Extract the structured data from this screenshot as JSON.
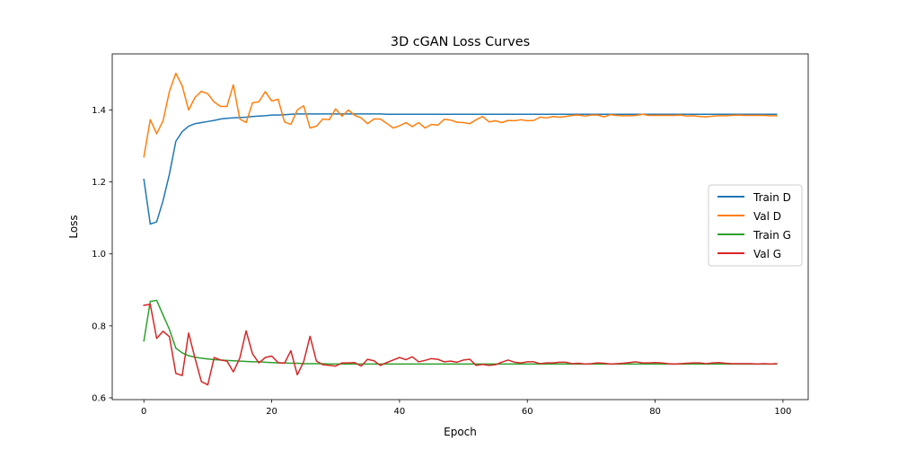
{
  "chart_data": {
    "type": "line",
    "title": "3D cGAN Loss Curves",
    "xlabel": "Epoch",
    "ylabel": "Loss",
    "xlim": [
      -4.95,
      103.95
    ],
    "ylim": [
      0.595,
      1.556
    ],
    "xticks": [
      {
        "value": 0,
        "label": "0"
      },
      {
        "value": 20,
        "label": "20"
      },
      {
        "value": 40,
        "label": "40"
      },
      {
        "value": 60,
        "label": "60"
      },
      {
        "value": 80,
        "label": "80"
      },
      {
        "value": 100,
        "label": "100"
      }
    ],
    "yticks": [
      {
        "value": 0.6,
        "label": "0.6"
      },
      {
        "value": 0.8,
        "label": "0.8"
      },
      {
        "value": 1.0,
        "label": "1.0"
      },
      {
        "value": 1.2,
        "label": "1.2"
      },
      {
        "value": 1.4,
        "label": "1.4"
      }
    ],
    "grid": false,
    "legend_position": "center-right",
    "series": [
      {
        "name": "Train D",
        "color": "#1f77b4",
        "values": [
          1.207,
          1.083,
          1.089,
          1.148,
          1.222,
          1.313,
          1.34,
          1.355,
          1.362,
          1.365,
          1.368,
          1.371,
          1.375,
          1.377,
          1.378,
          1.379,
          1.38,
          1.382,
          1.383,
          1.384,
          1.386,
          1.386,
          1.387,
          1.388,
          1.389,
          1.389,
          1.389,
          1.389,
          1.389,
          1.389,
          1.389,
          1.389,
          1.389,
          1.389,
          1.389,
          1.389,
          1.389,
          1.389,
          1.388,
          1.388,
          1.388,
          1.388,
          1.388,
          1.388,
          1.388,
          1.388,
          1.388,
          1.388,
          1.388,
          1.388,
          1.388,
          1.388,
          1.388,
          1.388,
          1.388,
          1.388,
          1.388,
          1.388,
          1.388,
          1.388,
          1.388,
          1.388,
          1.388,
          1.388,
          1.388,
          1.388,
          1.388,
          1.388,
          1.388,
          1.388,
          1.388,
          1.388,
          1.388,
          1.388,
          1.388,
          1.388,
          1.388,
          1.388,
          1.388,
          1.388,
          1.388,
          1.388,
          1.388,
          1.388,
          1.388,
          1.388,
          1.388,
          1.388,
          1.388,
          1.388,
          1.388,
          1.388,
          1.388,
          1.388,
          1.388,
          1.388,
          1.388,
          1.388,
          1.388,
          1.388
        ]
      },
      {
        "name": "Val D",
        "color": "#ff7f0e",
        "values": [
          1.27,
          1.373,
          1.334,
          1.37,
          1.452,
          1.502,
          1.467,
          1.4,
          1.435,
          1.452,
          1.445,
          1.422,
          1.41,
          1.41,
          1.47,
          1.375,
          1.365,
          1.42,
          1.423,
          1.451,
          1.425,
          1.43,
          1.367,
          1.36,
          1.4,
          1.412,
          1.35,
          1.355,
          1.375,
          1.373,
          1.403,
          1.383,
          1.4,
          1.385,
          1.378,
          1.362,
          1.375,
          1.375,
          1.363,
          1.35,
          1.356,
          1.365,
          1.354,
          1.365,
          1.35,
          1.36,
          1.358,
          1.374,
          1.372,
          1.366,
          1.365,
          1.362,
          1.373,
          1.382,
          1.367,
          1.37,
          1.365,
          1.371,
          1.37,
          1.373,
          1.37,
          1.371,
          1.38,
          1.378,
          1.382,
          1.38,
          1.382,
          1.385,
          1.386,
          1.383,
          1.386,
          1.386,
          1.381,
          1.387,
          1.385,
          1.384,
          1.384,
          1.385,
          1.388,
          1.385,
          1.385,
          1.385,
          1.385,
          1.385,
          1.386,
          1.383,
          1.384,
          1.382,
          1.381,
          1.383,
          1.384,
          1.384,
          1.385,
          1.386,
          1.385,
          1.385,
          1.385,
          1.385,
          1.384,
          1.384
        ]
      },
      {
        "name": "Train G",
        "color": "#2ca02c",
        "values": [
          0.758,
          0.868,
          0.871,
          0.83,
          0.79,
          0.738,
          0.725,
          0.717,
          0.713,
          0.71,
          0.708,
          0.706,
          0.705,
          0.704,
          0.703,
          0.702,
          0.701,
          0.7,
          0.7,
          0.699,
          0.698,
          0.697,
          0.697,
          0.696,
          0.696,
          0.695,
          0.695,
          0.695,
          0.695,
          0.694,
          0.694,
          0.694,
          0.694,
          0.694,
          0.694,
          0.694,
          0.694,
          0.694,
          0.694,
          0.694,
          0.694,
          0.694,
          0.694,
          0.694,
          0.694,
          0.694,
          0.694,
          0.694,
          0.694,
          0.694,
          0.694,
          0.694,
          0.694,
          0.694,
          0.694,
          0.694,
          0.694,
          0.694,
          0.694,
          0.694,
          0.694,
          0.694,
          0.694,
          0.694,
          0.694,
          0.694,
          0.694,
          0.694,
          0.694,
          0.694,
          0.694,
          0.694,
          0.694,
          0.694,
          0.694,
          0.694,
          0.694,
          0.694,
          0.694,
          0.694,
          0.694,
          0.694,
          0.694,
          0.694,
          0.694,
          0.694,
          0.694,
          0.694,
          0.694,
          0.694,
          0.694,
          0.694,
          0.694,
          0.694,
          0.694,
          0.694,
          0.694,
          0.694,
          0.694,
          0.694
        ]
      },
      {
        "name": "Val G",
        "color": "#d62728",
        "values": [
          0.857,
          0.86,
          0.765,
          0.785,
          0.77,
          0.668,
          0.662,
          0.78,
          0.71,
          0.645,
          0.636,
          0.712,
          0.705,
          0.702,
          0.672,
          0.71,
          0.786,
          0.722,
          0.697,
          0.712,
          0.716,
          0.698,
          0.696,
          0.731,
          0.664,
          0.7,
          0.771,
          0.702,
          0.692,
          0.69,
          0.688,
          0.697,
          0.697,
          0.698,
          0.688,
          0.707,
          0.703,
          0.69,
          0.698,
          0.705,
          0.712,
          0.706,
          0.714,
          0.7,
          0.704,
          0.709,
          0.707,
          0.7,
          0.702,
          0.699,
          0.705,
          0.707,
          0.69,
          0.693,
          0.69,
          0.692,
          0.699,
          0.705,
          0.699,
          0.697,
          0.7,
          0.7,
          0.695,
          0.697,
          0.697,
          0.699,
          0.699,
          0.695,
          0.696,
          0.694,
          0.695,
          0.697,
          0.696,
          0.694,
          0.695,
          0.696,
          0.698,
          0.7,
          0.697,
          0.697,
          0.698,
          0.697,
          0.695,
          0.694,
          0.695,
          0.696,
          0.697,
          0.697,
          0.695,
          0.697,
          0.698,
          0.696,
          0.695,
          0.695,
          0.695,
          0.695,
          0.694,
          0.695,
          0.694,
          0.695
        ]
      }
    ]
  }
}
